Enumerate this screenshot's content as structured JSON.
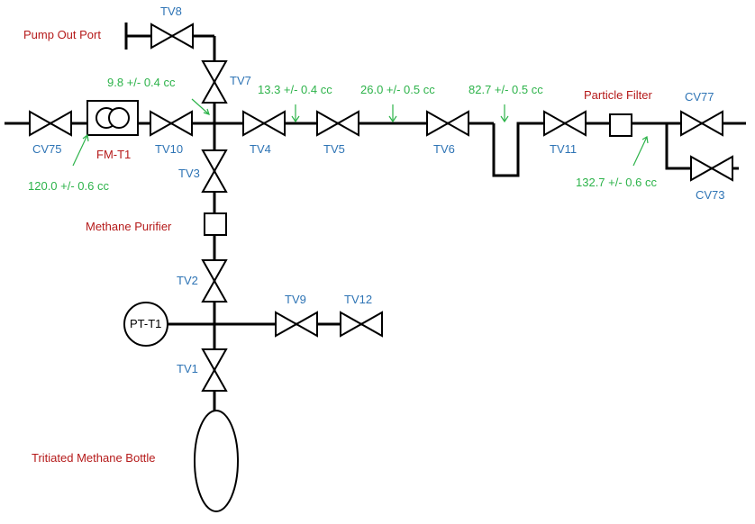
{
  "colors": {
    "valve_label": "#2e74b5",
    "component_label": "#b51a1a",
    "volume_label": "#2db34a",
    "line": "#000000"
  },
  "valves": {
    "tv8": "TV8",
    "tv7": "TV7",
    "cv75": "CV75",
    "tv10": "TV10",
    "tv4": "TV4",
    "tv5": "TV5",
    "tv6": "TV6",
    "tv11": "TV11",
    "cv77": "CV77",
    "cv73": "CV73",
    "tv3": "TV3",
    "tv2": "TV2",
    "tv9": "TV9",
    "tv12": "TV12",
    "tv1": "TV1"
  },
  "components": {
    "pump_out_port": "Pump Out Port",
    "flow_meter": "FM-T1",
    "particle_filter": "Particle Filter",
    "methane_purifier": "Methane Purifier",
    "pressure_transducer": "PT-T1",
    "bottle": "Tritiated Methane Bottle"
  },
  "volumes": {
    "v1": "9.8 +/- 0.4 cc",
    "v2": "13.3 +/- 0.4 cc",
    "v3": "26.0 +/- 0.5 cc",
    "v4": "82.7 +/- 0.5 cc",
    "v5": "120.0 +/- 0.6 cc",
    "v6": "132.7 +/- 0.6 cc"
  }
}
